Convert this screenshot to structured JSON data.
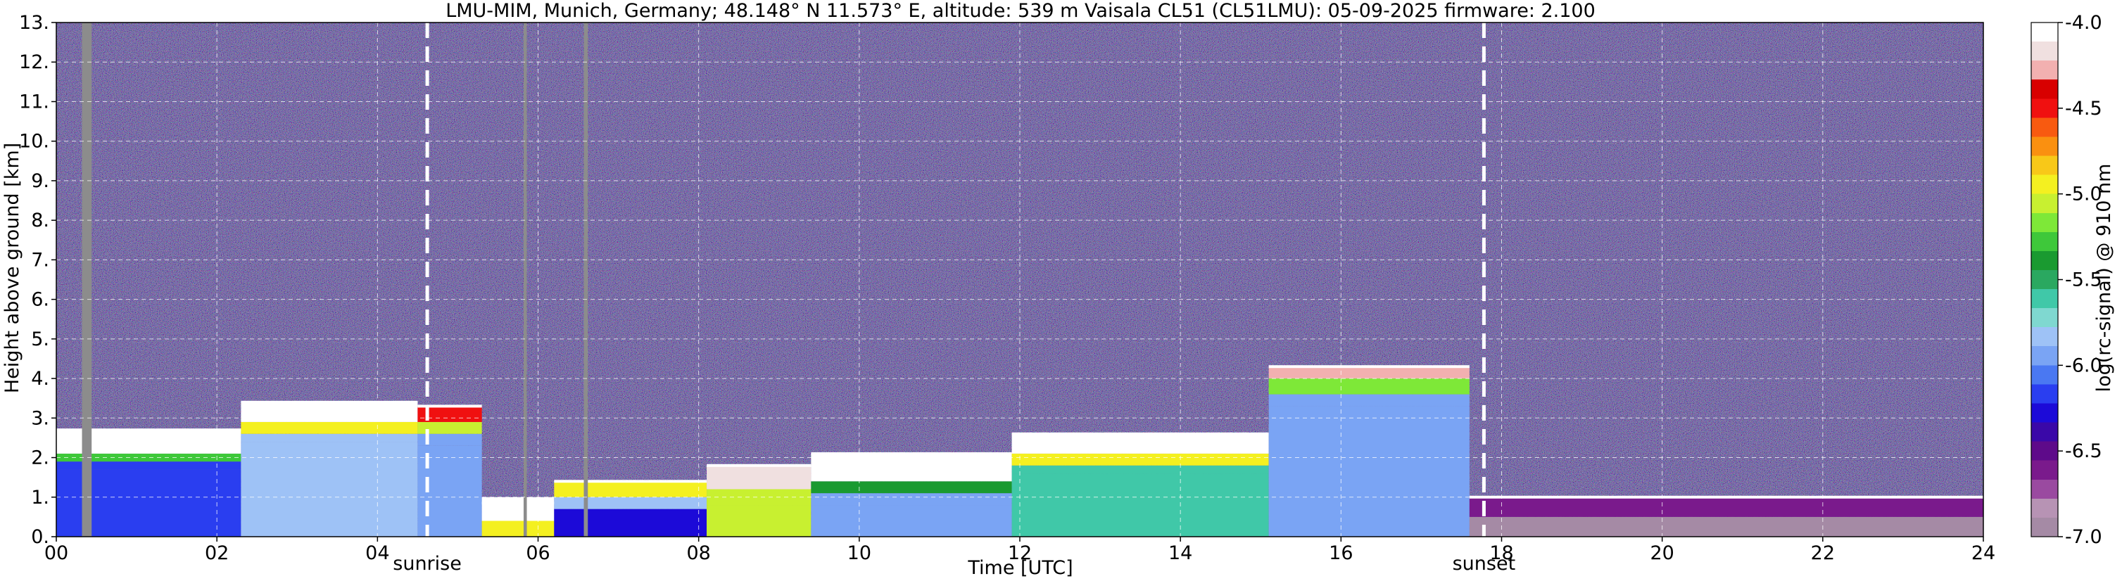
{
  "chart_data": {
    "type": "heatmap",
    "title": "LMU-MIM, Munich, Germany; 48.148° N 11.573° E, altitude: 539 m    Vaisala CL51 (CL51LMU): 05-09-2025    firmware: 2.100",
    "xlabel": "Time [UTC]",
    "ylabel": "Height above ground [km]",
    "xlim": [
      0,
      24
    ],
    "ylim": [
      0,
      13
    ],
    "x_ticks": [
      "00",
      "02",
      "04",
      "06",
      "08",
      "10",
      "12",
      "14",
      "16",
      "18",
      "20",
      "22",
      "24"
    ],
    "y_ticks": [
      "0.",
      "1.",
      "2.",
      "3.",
      "4.",
      "5.",
      "6.",
      "7.",
      "8.",
      "9.",
      "10.",
      "11.",
      "12.",
      "13."
    ],
    "grid": true,
    "colorbar": {
      "label": "log(rc-signal) @ 910 nm",
      "range": [
        -7.0,
        -4.0
      ],
      "ticks": [
        "-4.0",
        "-4.5",
        "-5.0",
        "-5.5",
        "-6.0",
        "-6.5",
        "-7.0"
      ],
      "colors": [
        "#a58aa5",
        "#b793b4",
        "#9a4aa0",
        "#7a1a8c",
        "#5e0a8a",
        "#3a08a8",
        "#1c0ad8",
        "#2a3ef0",
        "#4a78f2",
        "#7aa4f4",
        "#9ec2f6",
        "#7fd8d0",
        "#40c8a8",
        "#2aa860",
        "#1a9a30",
        "#3ec83a",
        "#7ee838",
        "#c8f030",
        "#f4f020",
        "#f8c818",
        "#fa9010",
        "#f85a10",
        "#f01010",
        "#d80000",
        "#f2b0b0",
        "#f0e0e0",
        "#ffffff"
      ]
    },
    "annotations": [
      {
        "label": "sunrise",
        "x": 4.62
      },
      {
        "label": "sunset",
        "x": 17.78
      }
    ],
    "signal_regions": [
      {
        "x0": 0.0,
        "x1": 2.3,
        "top": 2.7,
        "levels": [
          [
            -4.0,
            0.6
          ],
          [
            -5.3,
            0.2
          ],
          [
            -6.2,
            0.2
          ]
        ]
      },
      {
        "x0": 2.3,
        "x1": 4.5,
        "top": 3.4,
        "levels": [
          [
            -4.0,
            0.5
          ],
          [
            -5.0,
            0.3
          ],
          [
            -5.8,
            0.2
          ]
        ]
      },
      {
        "x0": 4.5,
        "x1": 5.3,
        "top": 3.3,
        "levels": [
          [
            -4.5,
            0.4
          ],
          [
            -5.1,
            0.3
          ],
          [
            -6.0,
            0.3
          ]
        ]
      },
      {
        "x0": 5.3,
        "x1": 6.2,
        "top": 0.85,
        "levels": [
          [
            -4.0,
            0.6
          ],
          [
            -5.0,
            0.4
          ]
        ]
      },
      {
        "x0": 6.2,
        "x1": 8.1,
        "top": 1.4,
        "levels": [
          [
            -5.0,
            0.4
          ],
          [
            -5.8,
            0.3
          ],
          [
            -6.3,
            0.3
          ]
        ]
      },
      {
        "x0": 8.1,
        "x1": 9.4,
        "top": 1.8,
        "levels": [
          [
            -4.2,
            0.6
          ],
          [
            -5.1,
            0.4
          ]
        ]
      },
      {
        "x0": 9.4,
        "x1": 11.9,
        "top": 2.1,
        "levels": [
          [
            -4.0,
            0.7
          ],
          [
            -5.4,
            0.3
          ],
          [
            -6.0,
            0.3
          ]
        ]
      },
      {
        "x0": 11.9,
        "x1": 15.1,
        "top": 2.6,
        "levels": [
          [
            -4.0,
            0.5
          ],
          [
            -4.9,
            0.3
          ],
          [
            -5.6,
            0.2
          ]
        ]
      },
      {
        "x0": 15.1,
        "x1": 17.6,
        "top": 4.3,
        "levels": [
          [
            -4.3,
            0.3
          ],
          [
            -5.2,
            0.4
          ],
          [
            -6.0,
            0.3
          ]
        ]
      },
      {
        "x0": 17.6,
        "x1": 24.0,
        "top": 1.0,
        "levels": [
          [
            -6.6,
            0.5
          ],
          [
            -6.9,
            0.5
          ]
        ]
      }
    ],
    "missing_data": [
      {
        "x0": 0.32,
        "x1": 0.44
      },
      {
        "x0": 5.82,
        "x1": 5.86
      },
      {
        "x0": 6.57,
        "x1": 6.62
      }
    ]
  }
}
